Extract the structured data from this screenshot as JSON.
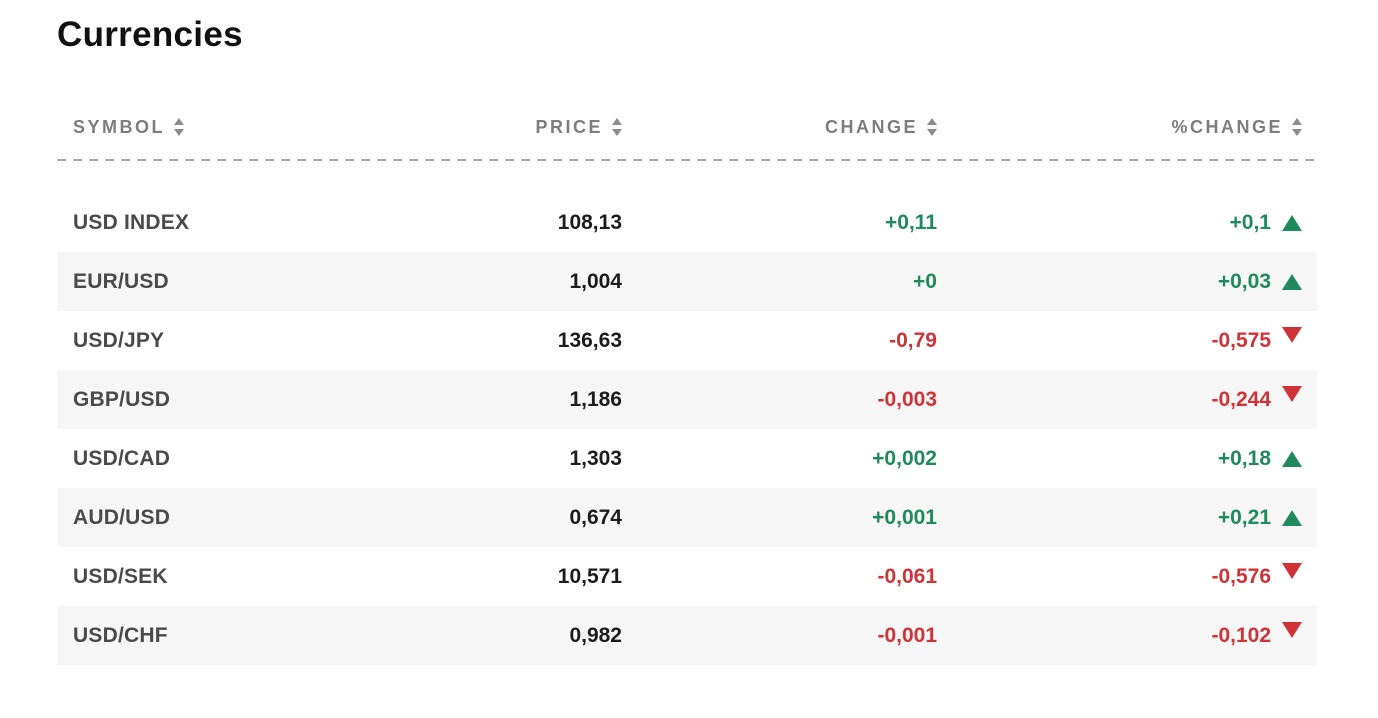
{
  "page": {
    "title": "Currencies"
  },
  "colors": {
    "up": "#1e8a5e",
    "down": "#cf3338",
    "header_text": "#7d7d7d",
    "symbol_text": "#4a4a4a",
    "price_text": "#1c1c1c",
    "alt_row_bg": "#f5f6f5",
    "divider": "#a8a8a8"
  },
  "icons": {
    "sort": "sort-up-down-arrows",
    "up": "up-triangle",
    "down": "down-triangle"
  },
  "table": {
    "headers": [
      {
        "label": "SYMBOL"
      },
      {
        "label": "PRICE"
      },
      {
        "label": "CHANGE"
      },
      {
        "label": "%CHANGE"
      }
    ],
    "rows": [
      {
        "symbol": "USD INDEX",
        "price": "108,13",
        "change": "+0,11",
        "pct_change": "+0,1",
        "direction": "up"
      },
      {
        "symbol": "EUR/USD",
        "price": "1,004",
        "change": "+0",
        "pct_change": "+0,03",
        "direction": "up"
      },
      {
        "symbol": "USD/JPY",
        "price": "136,63",
        "change": "-0,79",
        "pct_change": "-0,575",
        "direction": "down"
      },
      {
        "symbol": "GBP/USD",
        "price": "1,186",
        "change": "-0,003",
        "pct_change": "-0,244",
        "direction": "down"
      },
      {
        "symbol": "USD/CAD",
        "price": "1,303",
        "change": "+0,002",
        "pct_change": "+0,18",
        "direction": "up"
      },
      {
        "symbol": "AUD/USD",
        "price": "0,674",
        "change": "+0,001",
        "pct_change": "+0,21",
        "direction": "up"
      },
      {
        "symbol": "USD/SEK",
        "price": "10,571",
        "change": "-0,061",
        "pct_change": "-0,576",
        "direction": "down"
      },
      {
        "symbol": "USD/CHF",
        "price": "0,982",
        "change": "-0,001",
        "pct_change": "-0,102",
        "direction": "down"
      }
    ]
  }
}
